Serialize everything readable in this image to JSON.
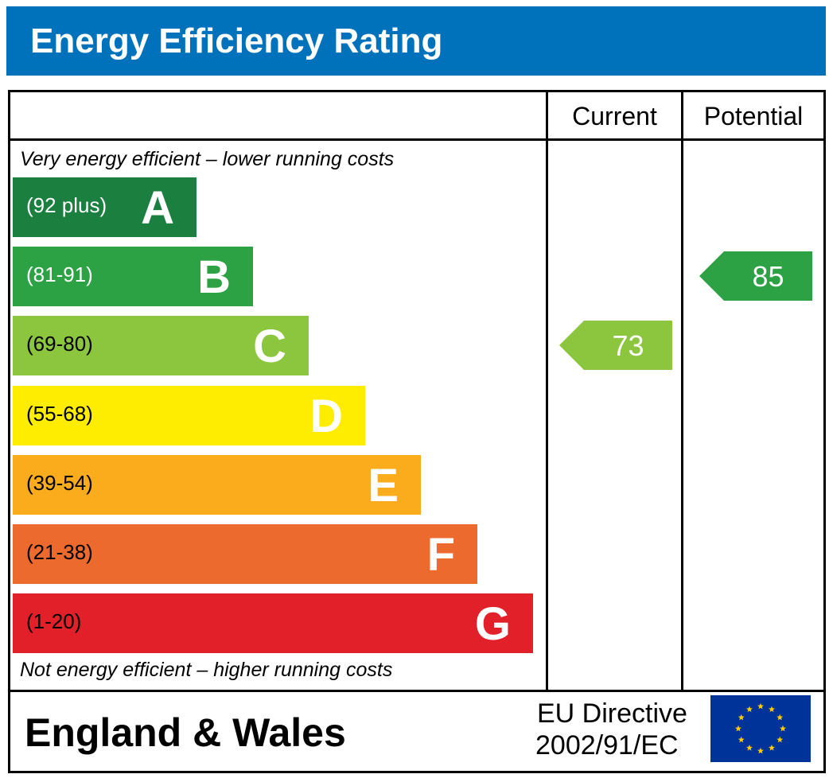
{
  "title": "Energy Efficiency Rating",
  "columns": {
    "current": "Current",
    "potential": "Potential"
  },
  "top_note": "Very energy efficient – lower running costs",
  "bottom_note": "Not energy efficient – higher running costs",
  "bands": [
    {
      "letter": "A",
      "range": "(92 plus)",
      "color": "#1b7f3f",
      "range_color": "#ffffff"
    },
    {
      "letter": "B",
      "range": "(81-91)",
      "color": "#2ca244",
      "range_color": "#ffffff"
    },
    {
      "letter": "C",
      "range": "(69-80)",
      "color": "#8cc63f",
      "range_color": "#000000"
    },
    {
      "letter": "D",
      "range": "(55-68)",
      "color": "#ffed00",
      "range_color": "#000000"
    },
    {
      "letter": "E",
      "range": "(39-54)",
      "color": "#fbac1d",
      "range_color": "#000000"
    },
    {
      "letter": "F",
      "range": "(21-38)",
      "color": "#ec6a2e",
      "range_color": "#000000"
    },
    {
      "letter": "G",
      "range": "(1-20)",
      "color": "#e1202a",
      "range_color": "#000000"
    }
  ],
  "current": {
    "value": "73",
    "band": "C",
    "color": "#8cc63f"
  },
  "potential": {
    "value": "85",
    "band": "B",
    "color": "#2ca244"
  },
  "footer": {
    "region": "England & Wales",
    "directive_line1": "EU Directive",
    "directive_line2": "2002/91/EC",
    "flag_icon": "eu-flag-icon"
  },
  "colors": {
    "header_bg": "#0072bc",
    "flag_bg": "#003399",
    "flag_star": "#ffcc00"
  },
  "chart_data": {
    "type": "table",
    "title": "Energy Efficiency Rating",
    "categories": [
      "A",
      "B",
      "C",
      "D",
      "E",
      "F",
      "G"
    ],
    "ranges": [
      "92 plus",
      "81-91",
      "69-80",
      "55-68",
      "39-54",
      "21-38",
      "1-20"
    ],
    "series": [
      {
        "name": "Current",
        "value": 73,
        "band": "C"
      },
      {
        "name": "Potential",
        "value": 85,
        "band": "B"
      }
    ]
  }
}
